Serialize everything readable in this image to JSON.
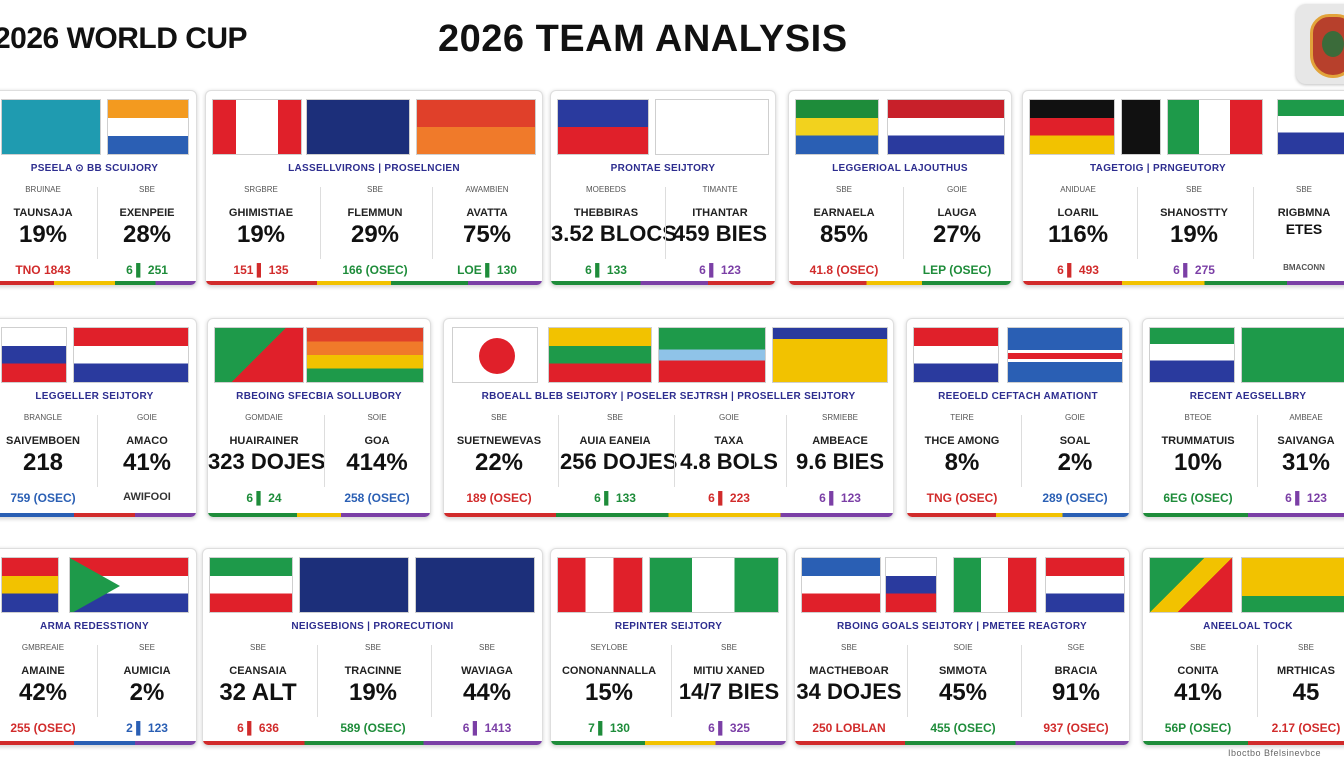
{
  "header": {
    "left_title": "2026 WORLD CUP",
    "main_title": "2026 TEAM ANALYSIS"
  },
  "footer": {
    "stamp": "Iboctbo Bfelsinevbce"
  },
  "rows": [
    {
      "cards": [
        {
          "subtitle": "PSEELA ⊙ BB SCUIJORY",
          "cells": [
            {
              "hd": "BRUINAE",
              "lbl": "TAUNSAJA",
              "val": "19%",
              "ft": "TNO 1843"
            },
            {
              "hd": "SBE",
              "lbl": "EXENPEIE",
              "val": "28%",
              "ft": "6 ▌ 251"
            }
          ]
        },
        {
          "subtitle": "LASSELLVIRONS | PROSELNCIEN",
          "cells": [
            {
              "hd": "SRGBRE",
              "lbl": "GHIMISTIAE",
              "val": "19%",
              "ft": "151 ▌ 135"
            },
            {
              "hd": "SBE",
              "lbl": "FLEMMUN",
              "val": "29%",
              "ft": "166 (OSEC)"
            },
            {
              "hd": "AWAMBIEN",
              "lbl": "AVATTA",
              "val": "75%",
              "ft": "LOE ▌ 130"
            }
          ]
        },
        {
          "subtitle": "PRONTAE SEIJTORY",
          "cells": [
            {
              "hd": "MOEBEDS",
              "lbl": "THEBBIRAS",
              "val": "3.52 BLOCS",
              "ft": "6 ▌ 133"
            },
            {
              "hd": "TIMANTE",
              "lbl": "ITHANTAR",
              "val": "459 BIES",
              "ft": "6 ▌ 123"
            }
          ]
        },
        {
          "subtitle": "LEGGERIOAL LAJOUTHUS",
          "cells": [
            {
              "hd": "SBE",
              "lbl": "EARNAELA",
              "val": "85%",
              "ft": "41.8 (OSEC)"
            },
            {
              "hd": "GOIE",
              "lbl": "LAUGA",
              "val": "27%",
              "ft": "LEP (OSEC)"
            }
          ]
        },
        {
          "subtitle": "TAGETOIG | PRNGEUTORY",
          "cells": [
            {
              "hd": "ANIDUAE",
              "lbl": "LOARIL",
              "val": "116%",
              "ft": "6 ▌ 493"
            },
            {
              "hd": "SBE",
              "lbl": "SHANOSTTY",
              "val": "19%",
              "ft": "6 ▌ 275"
            },
            {
              "hd": "SBE",
              "lbl": "RIGBMNA",
              "val": "ETES",
              "ft": "BMACONN"
            }
          ]
        }
      ]
    },
    {
      "cards": [
        {
          "subtitle": "LEGGELLER SEIJTORY",
          "cells": [
            {
              "hd": "BRANGLE",
              "lbl": "SAIVEMBOEN",
              "val": "218",
              "ft": "759 (OSEC)"
            },
            {
              "hd": "GOIE",
              "lbl": "AMACO",
              "val": "41%",
              "ft": "AWIFOOI"
            }
          ]
        },
        {
          "subtitle": "RBEOING SFECBIA SOLLUBORY",
          "cells": [
            {
              "hd": "GOMDAIE",
              "lbl": "HUAIRAINER",
              "val": "323 DOJES",
              "ft": "6 ▌ 24"
            },
            {
              "hd": "SOIE",
              "lbl": "GOA",
              "val": "414%",
              "ft": "258 (OSEC)"
            }
          ]
        },
        {
          "subtitle": "RBOEALL BLEB SEIJTORY | POSELER SEJTRSH | PROSELLER SEIJTORY",
          "cells": [
            {
              "hd": "SBE",
              "lbl": "SUETNEWEVAS",
              "val": "22%",
              "ft": "189 (OSEC)"
            },
            {
              "hd": "SBE",
              "lbl": "AUIA EANEIA",
              "val": "256 DOJES",
              "ft": "6 ▌ 133"
            },
            {
              "hd": "GOIE",
              "lbl": "TAXA",
              "val": "4.8 BOLS",
              "ft": "6 ▌ 223"
            },
            {
              "hd": "SRMIEBE",
              "lbl": "AMBEACE",
              "val": "9.6 BIES",
              "ft": "6 ▌ 123"
            }
          ]
        },
        {
          "subtitle": "REEOELD CEFTACH AMATIONT",
          "cells": [
            {
              "hd": "TEIRE",
              "lbl": "THCE AMONG",
              "val": "8%",
              "ft": "TNG (OSEC)"
            },
            {
              "hd": "GOIE",
              "lbl": "SOAL",
              "val": "2%",
              "ft": "289 (OSEC)"
            }
          ]
        },
        {
          "subtitle": "RECENT AEGSELLBRY",
          "cells": [
            {
              "hd": "BTEOE",
              "lbl": "TRUMMATUIS",
              "val": "10%",
              "ft": "6EG (OSEC)"
            },
            {
              "hd": "AMBEAE",
              "lbl": "SAIVANGA",
              "val": "31%",
              "ft": "6 ▌ 123"
            }
          ]
        }
      ]
    },
    {
      "cards": [
        {
          "subtitle": "ARMA REDESSTIONY",
          "cells": [
            {
              "hd": "GMBREAIE",
              "lbl": "AMAINE",
              "val": "42%",
              "ft": "255 (OSEC)"
            },
            {
              "hd": "SEE",
              "lbl": "AUMICIA",
              "val": "2%",
              "ft": "2 ▌ 123"
            }
          ]
        },
        {
          "subtitle": "NEIGSEBIONS | PRORECUTIONI",
          "cells": [
            {
              "hd": "SBE",
              "lbl": "CEANSAIA",
              "val": "32 ALT",
              "ft": "6 ▌ 636"
            },
            {
              "hd": "SBE",
              "lbl": "TRACINNE",
              "val": "19%",
              "ft": "589 (OSEC)"
            },
            {
              "hd": "SBE",
              "lbl": "WAVIAGA",
              "val": "44%",
              "ft": "6 ▌ 1413"
            }
          ]
        },
        {
          "subtitle": "REPINTER SEIJTORY",
          "cells": [
            {
              "hd": "SEYLOBE",
              "lbl": "CONONANNALLA",
              "val": "15%",
              "ft": "7 ▌ 130"
            },
            {
              "hd": "SBE",
              "lbl": "MITIU XANED",
              "val": "14/7 BIES",
              "ft": "6 ▌ 325"
            }
          ]
        },
        {
          "subtitle": "RBOING GOALS SEIJTORY | PMETEE REAGTORY",
          "cells": [
            {
              "hd": "SBE",
              "lbl": "MACTHEBOAR",
              "val": "34 DOJES",
              "ft": "250 LOBLAN"
            },
            {
              "hd": "SOIE",
              "lbl": "SMMOTA",
              "val": "45%",
              "ft": "455 (OSEC)"
            },
            {
              "hd": "SGE",
              "lbl": "BRACIA",
              "val": "91%",
              "ft": "937 (OSEC)"
            }
          ]
        },
        {
          "subtitle": "ANEELOAL TOCK",
          "cells": [
            {
              "hd": "SBE",
              "lbl": "CONITA",
              "val": "41%",
              "ft": "56P (OSEC)"
            },
            {
              "hd": "SBE",
              "lbl": "MRTHICAS",
              "val": "45",
              "ft": "2.17 (OSEC)"
            }
          ]
        }
      ]
    }
  ]
}
